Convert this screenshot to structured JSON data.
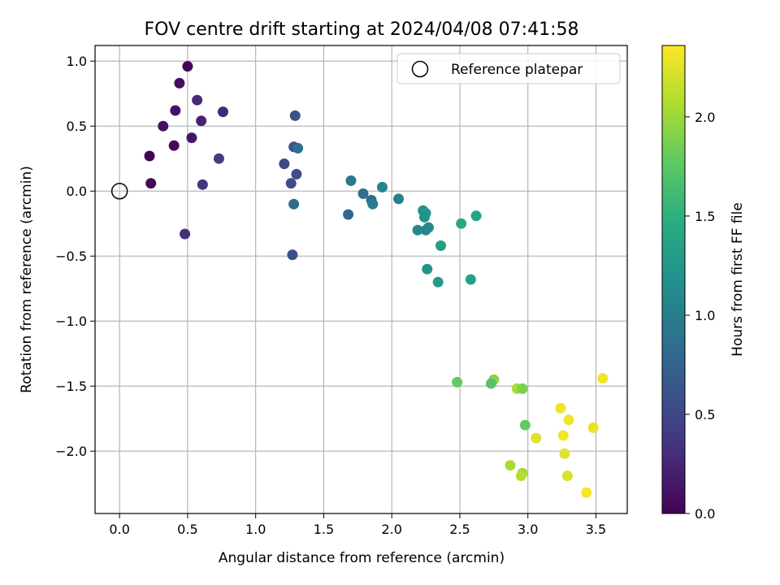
{
  "chart_data": {
    "type": "scatter",
    "title": "FOV centre drift starting at 2024/04/08 07:41:58",
    "xlabel": "Angular distance from reference (arcmin)",
    "ylabel": "Rotation from reference (arcmin)",
    "xlim": [
      -0.18,
      3.73
    ],
    "ylim": [
      -2.48,
      1.12
    ],
    "xticks": [
      0.0,
      0.5,
      1.0,
      1.5,
      2.0,
      2.5,
      3.0,
      3.5
    ],
    "xtick_labels": [
      "0.0",
      "0.5",
      "1.0",
      "1.5",
      "2.0",
      "2.5",
      "3.0",
      "3.5"
    ],
    "yticks": [
      1.0,
      0.5,
      0.0,
      -0.5,
      -1.0,
      -1.5,
      -2.0
    ],
    "ytick_labels": [
      "1.0",
      "0.5",
      "0.0",
      "−0.5",
      "−1.0",
      "−1.5",
      "−2.0"
    ],
    "grid": true,
    "legend": {
      "placement": "top-right",
      "entries": [
        "Reference platepar"
      ]
    },
    "reference_point": {
      "x": 0.0,
      "y": 0.0
    },
    "colorbar": {
      "label": "Hours from first FF file",
      "range": [
        0.0,
        2.36
      ],
      "ticks": [
        0.0,
        0.5,
        1.0,
        1.5,
        2.0
      ],
      "tick_labels": [
        "0.0",
        "0.5",
        "1.0",
        "1.5",
        "2.0"
      ],
      "colormap": "viridis"
    },
    "points": [
      {
        "x": 0.5,
        "y": 0.96,
        "c": 0.02
      },
      {
        "x": 0.44,
        "y": 0.83,
        "c": 0.08
      },
      {
        "x": 0.41,
        "y": 0.62,
        "c": 0.12
      },
      {
        "x": 0.32,
        "y": 0.5,
        "c": 0.1
      },
      {
        "x": 0.22,
        "y": 0.27,
        "c": 0.02
      },
      {
        "x": 0.4,
        "y": 0.35,
        "c": 0.06
      },
      {
        "x": 0.53,
        "y": 0.41,
        "c": 0.14
      },
      {
        "x": 0.23,
        "y": 0.06,
        "c": 0.06
      },
      {
        "x": 0.57,
        "y": 0.7,
        "c": 0.28
      },
      {
        "x": 0.6,
        "y": 0.54,
        "c": 0.22
      },
      {
        "x": 0.76,
        "y": 0.61,
        "c": 0.26
      },
      {
        "x": 0.73,
        "y": 0.25,
        "c": 0.42
      },
      {
        "x": 0.61,
        "y": 0.05,
        "c": 0.36
      },
      {
        "x": 0.48,
        "y": -0.33,
        "c": 0.32
      },
      {
        "x": 1.29,
        "y": 0.58,
        "c": 0.58
      },
      {
        "x": 1.28,
        "y": 0.34,
        "c": 0.62
      },
      {
        "x": 1.31,
        "y": 0.33,
        "c": 0.85
      },
      {
        "x": 1.21,
        "y": 0.21,
        "c": 0.5
      },
      {
        "x": 1.3,
        "y": 0.13,
        "c": 0.56
      },
      {
        "x": 1.26,
        "y": 0.06,
        "c": 0.54
      },
      {
        "x": 1.28,
        "y": -0.1,
        "c": 0.82
      },
      {
        "x": 1.27,
        "y": -0.49,
        "c": 0.58
      },
      {
        "x": 1.7,
        "y": 0.08,
        "c": 0.95
      },
      {
        "x": 1.79,
        "y": -0.02,
        "c": 0.85
      },
      {
        "x": 1.85,
        "y": -0.07,
        "c": 0.82
      },
      {
        "x": 1.86,
        "y": -0.1,
        "c": 0.98
      },
      {
        "x": 1.68,
        "y": -0.18,
        "c": 0.78
      },
      {
        "x": 1.93,
        "y": 0.03,
        "c": 1.08
      },
      {
        "x": 2.05,
        "y": -0.06,
        "c": 1.02
      },
      {
        "x": 2.23,
        "y": -0.15,
        "c": 1.15
      },
      {
        "x": 2.25,
        "y": -0.17,
        "c": 1.25
      },
      {
        "x": 2.24,
        "y": -0.2,
        "c": 1.18
      },
      {
        "x": 2.27,
        "y": -0.28,
        "c": 1.12
      },
      {
        "x": 2.25,
        "y": -0.3,
        "c": 1.08
      },
      {
        "x": 2.19,
        "y": -0.3,
        "c": 1.1
      },
      {
        "x": 2.51,
        "y": -0.25,
        "c": 1.42
      },
      {
        "x": 2.62,
        "y": -0.19,
        "c": 1.38
      },
      {
        "x": 2.36,
        "y": -0.42,
        "c": 1.32
      },
      {
        "x": 2.26,
        "y": -0.6,
        "c": 1.22
      },
      {
        "x": 2.34,
        "y": -0.7,
        "c": 1.28
      },
      {
        "x": 2.58,
        "y": -0.68,
        "c": 1.35
      },
      {
        "x": 2.48,
        "y": -1.47,
        "c": 1.78
      },
      {
        "x": 2.75,
        "y": -1.45,
        "c": 1.95
      },
      {
        "x": 2.73,
        "y": -1.48,
        "c": 1.72
      },
      {
        "x": 2.92,
        "y": -1.52,
        "c": 2.05
      },
      {
        "x": 2.96,
        "y": -1.52,
        "c": 1.88
      },
      {
        "x": 2.98,
        "y": -1.8,
        "c": 1.78
      },
      {
        "x": 3.24,
        "y": -1.67,
        "c": 2.3
      },
      {
        "x": 3.3,
        "y": -1.76,
        "c": 2.3
      },
      {
        "x": 3.26,
        "y": -1.88,
        "c": 2.32
      },
      {
        "x": 3.48,
        "y": -1.82,
        "c": 2.28
      },
      {
        "x": 3.06,
        "y": -1.9,
        "c": 2.25
      },
      {
        "x": 3.27,
        "y": -2.02,
        "c": 2.24
      },
      {
        "x": 3.55,
        "y": -1.44,
        "c": 2.3
      },
      {
        "x": 2.87,
        "y": -2.11,
        "c": 2.05
      },
      {
        "x": 2.96,
        "y": -2.17,
        "c": 2.02
      },
      {
        "x": 2.95,
        "y": -2.19,
        "c": 2.1
      },
      {
        "x": 3.29,
        "y": -2.19,
        "c": 2.22
      },
      {
        "x": 3.43,
        "y": -2.32,
        "c": 2.33
      }
    ]
  }
}
